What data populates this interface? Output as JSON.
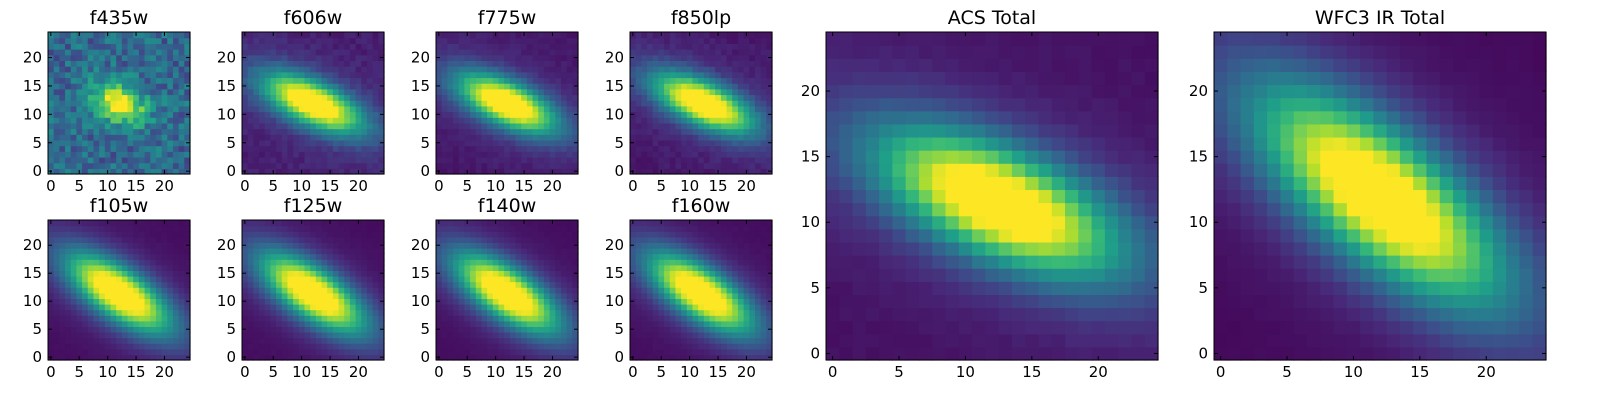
{
  "chart_data": {
    "type": "heatmap",
    "colormap": "viridis",
    "grid": false,
    "panels": [
      {
        "id": "f435w",
        "title": "f435w",
        "xlim": [
          -0.5,
          24.5
        ],
        "ylim": [
          -0.5,
          24.5
        ],
        "xticks": [
          0,
          5,
          10,
          15,
          20
        ],
        "yticks": [
          0,
          5,
          10,
          15,
          20
        ],
        "center": [
          12,
          12
        ],
        "sigma_major": 3.2,
        "sigma_minor": 2.2,
        "angle_deg": -25,
        "halo": 0.05,
        "noise": 0.4,
        "background": 0.45
      },
      {
        "id": "f606w",
        "title": "f606w",
        "xlim": [
          -0.5,
          24.5
        ],
        "ylim": [
          -0.5,
          24.5
        ],
        "xticks": [
          0,
          5,
          10,
          15,
          20
        ],
        "yticks": [
          0,
          5,
          10,
          15,
          20
        ],
        "center": [
          12,
          12
        ],
        "sigma_major": 6.5,
        "sigma_minor": 2.6,
        "angle_deg": -25,
        "halo": 0.12,
        "noise": 0.06,
        "background": 0.08
      },
      {
        "id": "f775w",
        "title": "f775w",
        "xlim": [
          -0.5,
          24.5
        ],
        "ylim": [
          -0.5,
          24.5
        ],
        "xticks": [
          0,
          5,
          10,
          15,
          20
        ],
        "yticks": [
          0,
          5,
          10,
          15,
          20
        ],
        "center": [
          12,
          12
        ],
        "sigma_major": 6.5,
        "sigma_minor": 2.6,
        "angle_deg": -25,
        "halo": 0.12,
        "noise": 0.04,
        "background": 0.06
      },
      {
        "id": "f850lp",
        "title": "f850lp",
        "xlim": [
          -0.5,
          24.5
        ],
        "ylim": [
          -0.5,
          24.5
        ],
        "xticks": [
          0,
          5,
          10,
          15,
          20
        ],
        "yticks": [
          0,
          5,
          10,
          15,
          20
        ],
        "center": [
          12.5,
          12
        ],
        "sigma_major": 6.5,
        "sigma_minor": 2.6,
        "angle_deg": -25,
        "halo": 0.12,
        "noise": 0.05,
        "background": 0.06
      },
      {
        "id": "f105w",
        "title": "f105w",
        "xlim": [
          -0.5,
          24.5
        ],
        "ylim": [
          -0.5,
          24.5
        ],
        "xticks": [
          0,
          5,
          10,
          15,
          20
        ],
        "yticks": [
          0,
          5,
          10,
          15,
          20
        ],
        "center": [
          12,
          11.5
        ],
        "sigma_major": 7.5,
        "sigma_minor": 3.0,
        "angle_deg": -35,
        "halo": 0.1,
        "noise": 0.01,
        "background": 0.03
      },
      {
        "id": "f125w",
        "title": "f125w",
        "xlim": [
          -0.5,
          24.5
        ],
        "ylim": [
          -0.5,
          24.5
        ],
        "xticks": [
          0,
          5,
          10,
          15,
          20
        ],
        "yticks": [
          0,
          5,
          10,
          15,
          20
        ],
        "center": [
          12,
          11.5
        ],
        "sigma_major": 7.5,
        "sigma_minor": 3.0,
        "angle_deg": -35,
        "halo": 0.1,
        "noise": 0.01,
        "background": 0.03
      },
      {
        "id": "f140w",
        "title": "f140w",
        "xlim": [
          -0.5,
          24.5
        ],
        "ylim": [
          -0.5,
          24.5
        ],
        "xticks": [
          0,
          5,
          10,
          15,
          20
        ],
        "yticks": [
          0,
          5,
          10,
          15,
          20
        ],
        "center": [
          12,
          11.5
        ],
        "sigma_major": 7.5,
        "sigma_minor": 3.0,
        "angle_deg": -35,
        "halo": 0.1,
        "noise": 0.01,
        "background": 0.03
      },
      {
        "id": "f160w",
        "title": "f160w",
        "xlim": [
          -0.5,
          24.5
        ],
        "ylim": [
          -0.5,
          24.5
        ],
        "xticks": [
          0,
          5,
          10,
          15,
          20
        ],
        "yticks": [
          0,
          5,
          10,
          15,
          20
        ],
        "center": [
          12,
          11.5
        ],
        "sigma_major": 7.5,
        "sigma_minor": 3.0,
        "angle_deg": -35,
        "halo": 0.1,
        "noise": 0.01,
        "background": 0.03
      },
      {
        "id": "acs-total",
        "title": "ACS Total",
        "xlim": [
          -0.5,
          24.5
        ],
        "ylim": [
          -0.5,
          24.5
        ],
        "xticks": [
          0,
          5,
          10,
          15,
          20
        ],
        "yticks": [
          0,
          5,
          10,
          15,
          20
        ],
        "center": [
          12.5,
          11.5
        ],
        "sigma_major": 6.8,
        "sigma_minor": 2.8,
        "angle_deg": -25,
        "halo": 0.12,
        "noise": 0.02,
        "background": 0.04
      },
      {
        "id": "wfc3-ir-total",
        "title": "WFC3 IR Total",
        "xlim": [
          -0.5,
          24.5
        ],
        "ylim": [
          -0.5,
          24.5
        ],
        "xticks": [
          0,
          5,
          10,
          15,
          20
        ],
        "yticks": [
          0,
          5,
          10,
          15,
          20
        ],
        "center": [
          12,
          12
        ],
        "sigma_major": 8.0,
        "sigma_minor": 3.2,
        "angle_deg": -40,
        "halo": 0.1,
        "noise": 0.01,
        "background": 0.02
      }
    ]
  }
}
